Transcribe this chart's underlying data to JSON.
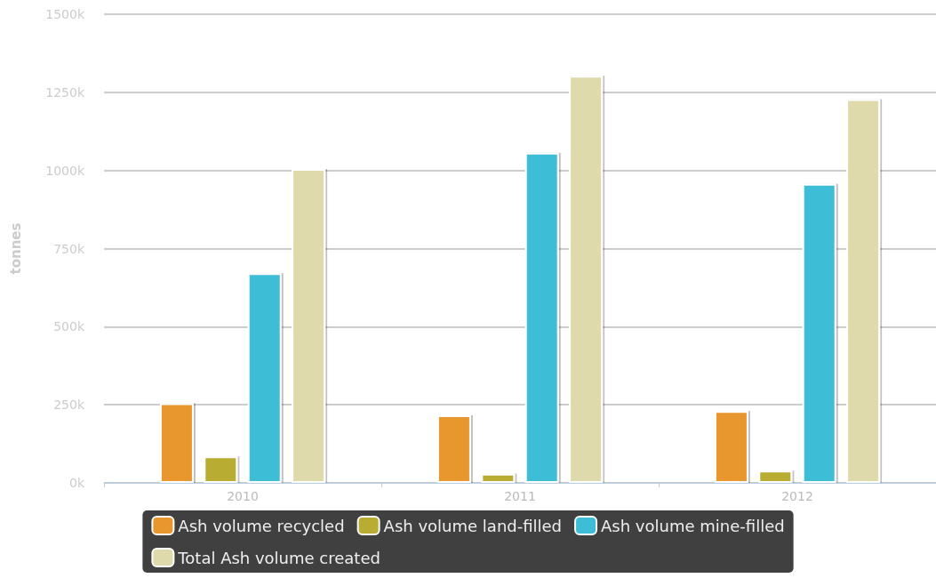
{
  "chart_data": {
    "type": "bar",
    "ylabel": "tonnes",
    "categories": [
      "2010",
      "2011",
      "2012"
    ],
    "series": [
      {
        "name": "Ash volume recycled",
        "color": "#e8962e",
        "values": [
          255,
          216,
          230
        ]
      },
      {
        "name": "Ash volume land-filled",
        "color": "#b9ac32",
        "values": [
          85,
          29,
          39
        ]
      },
      {
        "name": "Ash volume mine-filled",
        "color": "#3dbdd6",
        "values": [
          671,
          1057,
          957
        ]
      },
      {
        "name": "Total Ash volume created",
        "color": "#dedaab",
        "values": [
          1005,
          1303,
          1228
        ]
      }
    ],
    "ylim": [
      0,
      1500
    ],
    "yticks": [
      {
        "value": 0,
        "label": "0k"
      },
      {
        "value": 250,
        "label": "250k"
      },
      {
        "value": 500,
        "label": "500k"
      },
      {
        "value": 750,
        "label": "750k"
      },
      {
        "value": 1000,
        "label": "1000k"
      },
      {
        "value": 1250,
        "label": "1250k"
      },
      {
        "value": 1500,
        "label": "1500k"
      }
    ],
    "grid": "y",
    "legend": "bottom"
  }
}
